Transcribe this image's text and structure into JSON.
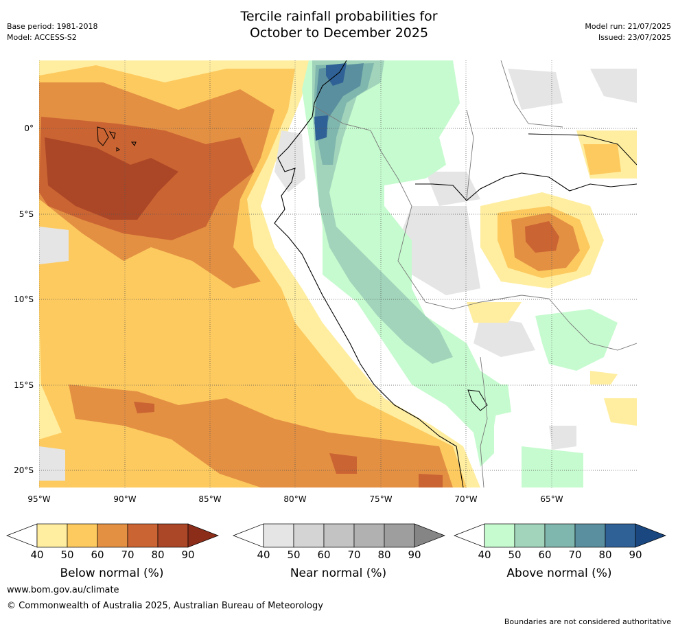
{
  "title_line1": "Tercile rainfall probabilities for",
  "title_line2": "October to December 2025",
  "base_period": "Base period: 1981-2018",
  "model": "Model: ACCESS-S2",
  "model_run": "Model run: 21/07/2025",
  "issued": "Issued: 23/07/2025",
  "map": {
    "lon_labels": [
      "95°W",
      "90°W",
      "85°W",
      "80°W",
      "75°W",
      "70°W",
      "65°W"
    ],
    "lat_labels": [
      "0°",
      "5°S",
      "10°S",
      "15°S",
      "20°S"
    ]
  },
  "colorbars": [
    {
      "label": "Below normal (%)",
      "ticks": [
        "40",
        "50",
        "60",
        "70",
        "80",
        "90"
      ],
      "colors": [
        "#ffeea0",
        "#fdca5f",
        "#e39043",
        "#cb6433",
        "#ab4727"
      ],
      "overflow": "#8c2d1a"
    },
    {
      "label": "Near normal (%)",
      "ticks": [
        "40",
        "50",
        "60",
        "70",
        "80",
        "90"
      ],
      "colors": [
        "#e5e5e5",
        "#d4d4d4",
        "#c3c3c3",
        "#b1b1b1",
        "#9e9e9e"
      ],
      "overflow": "#858585"
    },
    {
      "label": "Above normal (%)",
      "ticks": [
        "40",
        "50",
        "60",
        "70",
        "80",
        "90"
      ],
      "colors": [
        "#c6fbcf",
        "#a1d4bb",
        "#7fb6ad",
        "#5a8f9f",
        "#2f6196"
      ],
      "overflow": "#1a4780"
    }
  ],
  "footer": {
    "url": "www.bom.gov.au/climate",
    "copyright": "© Commonwealth of Australia 2025, Australian Bureau of Meteorology",
    "disclaimer": "Boundaries are not considered authoritative"
  }
}
